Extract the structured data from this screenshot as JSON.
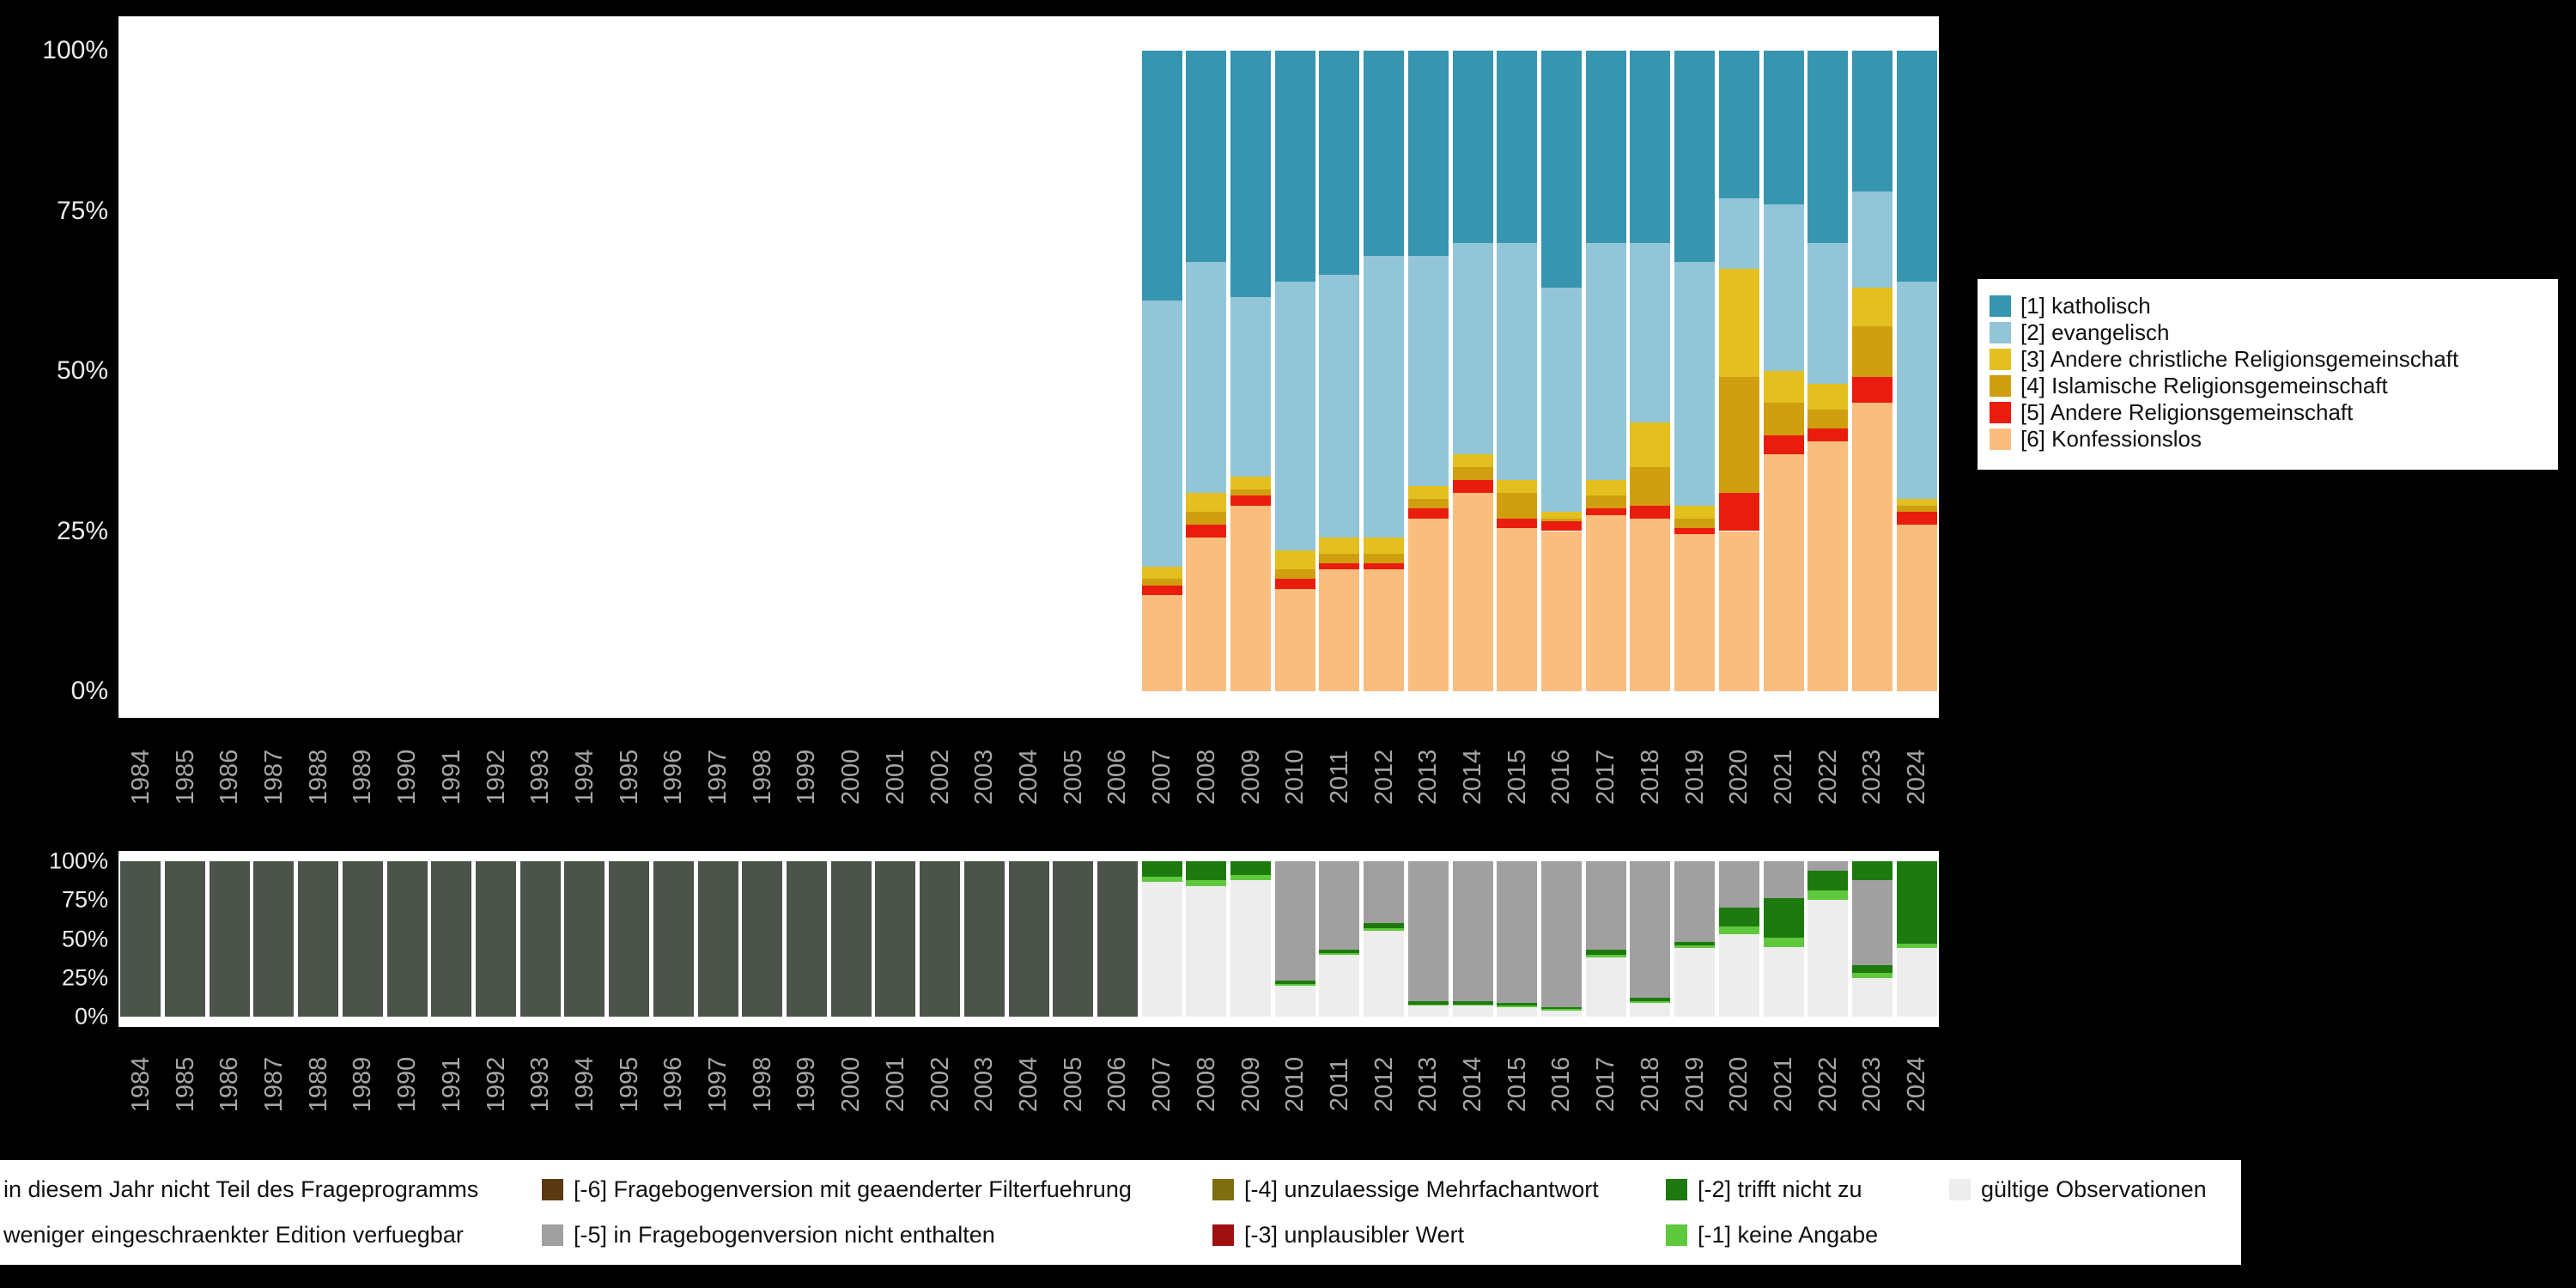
{
  "page": {
    "background": "#000000",
    "panel_background": "#ffffff"
  },
  "top_legend": {
    "items": [
      {
        "label": "[1] katholisch",
        "color": "#3795b0"
      },
      {
        "label": "[2] evangelisch",
        "color": "#92c5d8"
      },
      {
        "label": "[3] Andere christliche Religionsgemeinschaft",
        "color": "#e3c01f"
      },
      {
        "label": "[4] Islamische Religionsgemeinschaft",
        "color": "#cf9f10"
      },
      {
        "label": "[5] Andere Religionsgemeinschaft",
        "color": "#ea1c0d"
      },
      {
        "label": "[6] Konfessionslos",
        "color": "#f9bd7e"
      }
    ]
  },
  "bottom_legend": {
    "rows": [
      [
        {
          "label": "in diesem Jahr nicht Teil des Frageprogramms",
          "color": "#4b534b",
          "swatch": false
        },
        {
          "label": "[-6] Fragebogenversion mit geaenderter Filterfuehrung",
          "color": "#5a3a12",
          "swatch": true
        },
        {
          "label": "[-4] unzulaessige Mehrfachantwort",
          "color": "#7d6e10",
          "swatch": true
        },
        {
          "label": "[-2] trifft nicht zu",
          "color": "#1e7a0e",
          "swatch": true
        },
        {
          "label": "gültige Observationen",
          "color": "#ededed",
          "swatch": true
        }
      ],
      [
        {
          "label": "weniger eingeschraenkter Edition verfuegbar",
          "color": "#9e9e9e",
          "swatch": false
        },
        {
          "label": "[-5] in Fragebogenversion nicht enthalten",
          "color": "#a0a0a0",
          "swatch": true
        },
        {
          "label": "[-3] unplausibler Wert",
          "color": "#a01010",
          "swatch": true
        },
        {
          "label": "[-1] keine Angabe",
          "color": "#5ec93c",
          "swatch": true
        }
      ]
    ]
  },
  "chart_data": [
    {
      "type": "bar",
      "stacked": true,
      "stack_unit": "percent",
      "title": "",
      "xlabel": "",
      "ylabel": "",
      "ylim": [
        0,
        100
      ],
      "grid": false,
      "legend_position": "right",
      "x": [
        "1984",
        "1985",
        "1986",
        "1987",
        "1988",
        "1989",
        "1990",
        "1991",
        "1992",
        "1993",
        "1994",
        "1995",
        "1996",
        "1997",
        "1998",
        "1999",
        "2000",
        "2001",
        "2002",
        "2003",
        "2004",
        "2005",
        "2006",
        "2007",
        "2008",
        "2009",
        "2010",
        "2011",
        "2012",
        "2013",
        "2014",
        "2015",
        "2016",
        "2017",
        "2018",
        "2019",
        "2020",
        "2021",
        "2022",
        "2023",
        "2024"
      ],
      "yticks": [
        0,
        25,
        50,
        75,
        100
      ],
      "ytick_labels": [
        "0%",
        "25%",
        "50%",
        "75%",
        "100%"
      ],
      "series_bottom_up": [
        {
          "name": "[6] Konfessionslos",
          "color": "#f9bd7e",
          "values_by_year": {
            "2007": 15,
            "2008": 24,
            "2009": 29,
            "2010": 16,
            "2011": 19,
            "2012": 19,
            "2013": 27,
            "2014": 31,
            "2015": 25.5,
            "2016": 25,
            "2017": 27.5,
            "2018": 27,
            "2019": 24.5,
            "2020": 25,
            "2021": 37,
            "2022": 39,
            "2023": 45,
            "2024": 26
          }
        },
        {
          "name": "[5] Andere Religionsgemeinschaft",
          "color": "#ea1c0d",
          "values_by_year": {
            "2007": 1.5,
            "2008": 2,
            "2009": 1.5,
            "2010": 1.5,
            "2011": 1,
            "2012": 1,
            "2013": 1.5,
            "2014": 2,
            "2015": 1.5,
            "2016": 1.5,
            "2017": 1,
            "2018": 2,
            "2019": 1,
            "2020": 6,
            "2021": 3,
            "2022": 2,
            "2023": 4,
            "2024": 2
          }
        },
        {
          "name": "[4] Islamische Religionsgemeinschaft",
          "color": "#cf9f10",
          "values_by_year": {
            "2007": 1,
            "2008": 2,
            "2009": 1,
            "2010": 1.5,
            "2011": 1.5,
            "2012": 1.5,
            "2013": 1.5,
            "2014": 2,
            "2015": 4,
            "2016": 0.5,
            "2017": 2,
            "2018": 6,
            "2019": 1.5,
            "2020": 18,
            "2021": 5,
            "2022": 3,
            "2023": 8,
            "2024": 1
          }
        },
        {
          "name": "[3] Andere christliche Religionsgemeinschaft",
          "color": "#e3c01f",
          "values_by_year": {
            "2007": 2,
            "2008": 3,
            "2009": 2,
            "2010": 3,
            "2011": 2.5,
            "2012": 2.5,
            "2013": 2,
            "2014": 2,
            "2015": 2,
            "2016": 1,
            "2017": 2.5,
            "2018": 7,
            "2019": 2,
            "2020": 17,
            "2021": 5,
            "2022": 4,
            "2023": 6,
            "2024": 1
          }
        },
        {
          "name": "[2] evangelisch",
          "color": "#92c5d8",
          "values_by_year": {
            "2007": 41.5,
            "2008": 36,
            "2009": 28,
            "2010": 42,
            "2011": 41,
            "2012": 44,
            "2013": 36,
            "2014": 33,
            "2015": 37,
            "2016": 35,
            "2017": 37,
            "2018": 28,
            "2019": 38,
            "2020": 11,
            "2021": 26,
            "2022": 22,
            "2023": 15,
            "2024": 34
          }
        },
        {
          "name": "[1] katholisch",
          "color": "#3795b0",
          "values_by_year": {
            "2007": 39,
            "2008": 33,
            "2009": 38.5,
            "2010": 36,
            "2011": 35,
            "2012": 32,
            "2013": 32,
            "2014": 30,
            "2015": 30,
            "2016": 37,
            "2017": 30,
            "2018": 30,
            "2019": 33,
            "2020": 23,
            "2021": 24,
            "2022": 30,
            "2023": 22,
            "2024": 36
          }
        }
      ]
    },
    {
      "type": "bar",
      "stacked": true,
      "stack_unit": "percent",
      "title": "",
      "xlabel": "",
      "ylabel": "",
      "ylim": [
        0,
        100
      ],
      "grid": false,
      "legend_position": "bottom",
      "x": [
        "1984",
        "1985",
        "1986",
        "1987",
        "1988",
        "1989",
        "1990",
        "1991",
        "1992",
        "1993",
        "1994",
        "1995",
        "1996",
        "1997",
        "1998",
        "1999",
        "2000",
        "2001",
        "2002",
        "2003",
        "2004",
        "2005",
        "2006",
        "2007",
        "2008",
        "2009",
        "2010",
        "2011",
        "2012",
        "2013",
        "2014",
        "2015",
        "2016",
        "2017",
        "2018",
        "2019",
        "2020",
        "2021",
        "2022",
        "2023",
        "2024"
      ],
      "yticks": [
        0,
        25,
        50,
        75,
        100
      ],
      "ytick_labels": [
        "0%",
        "25%",
        "50%",
        "75%",
        "100%"
      ],
      "palette": {
        "notpart": "#4b534b",
        "valid": "#ededed",
        "na": "#5ec93c",
        "tnz": "#1e7a0e",
        "gray": "#a0a0a0"
      },
      "palette_labels": {
        "notpart": "in diesem Jahr nicht Teil des Frageprogramms",
        "valid": "gültige Observationen",
        "na": "[-1] keine Angabe",
        "tnz": "[-2] trifft nicht zu",
        "gray": "[-5] in Fragebogenversion nicht enthalten"
      },
      "bars_by_year": {
        "1984": [
          [
            "notpart",
            100
          ]
        ],
        "1985": [
          [
            "notpart",
            100
          ]
        ],
        "1986": [
          [
            "notpart",
            100
          ]
        ],
        "1987": [
          [
            "notpart",
            100
          ]
        ],
        "1988": [
          [
            "notpart",
            100
          ]
        ],
        "1989": [
          [
            "notpart",
            100
          ]
        ],
        "1990": [
          [
            "notpart",
            100
          ]
        ],
        "1991": [
          [
            "notpart",
            100
          ]
        ],
        "1992": [
          [
            "notpart",
            100
          ]
        ],
        "1993": [
          [
            "notpart",
            100
          ]
        ],
        "1994": [
          [
            "notpart",
            100
          ]
        ],
        "1995": [
          [
            "notpart",
            100
          ]
        ],
        "1996": [
          [
            "notpart",
            100
          ]
        ],
        "1997": [
          [
            "notpart",
            100
          ]
        ],
        "1998": [
          [
            "notpart",
            100
          ]
        ],
        "1999": [
          [
            "notpart",
            100
          ]
        ],
        "2000": [
          [
            "notpart",
            100
          ]
        ],
        "2001": [
          [
            "notpart",
            100
          ]
        ],
        "2002": [
          [
            "notpart",
            100
          ]
        ],
        "2003": [
          [
            "notpart",
            100
          ]
        ],
        "2004": [
          [
            "notpart",
            100
          ]
        ],
        "2005": [
          [
            "notpart",
            100
          ]
        ],
        "2006": [
          [
            "notpart",
            100
          ]
        ],
        "2007": [
          [
            "valid",
            87
          ],
          [
            "na",
            3
          ],
          [
            "tnz",
            10
          ]
        ],
        "2008": [
          [
            "valid",
            84
          ],
          [
            "na",
            4
          ],
          [
            "tnz",
            12
          ]
        ],
        "2009": [
          [
            "valid",
            88
          ],
          [
            "na",
            3
          ],
          [
            "tnz",
            9
          ]
        ],
        "2010": [
          [
            "valid",
            20
          ],
          [
            "na",
            1
          ],
          [
            "tnz",
            2
          ],
          [
            "gray",
            77
          ]
        ],
        "2011": [
          [
            "valid",
            40
          ],
          [
            "na",
            1
          ],
          [
            "tnz",
            2
          ],
          [
            "gray",
            57
          ]
        ],
        "2012": [
          [
            "valid",
            55
          ],
          [
            "na",
            2
          ],
          [
            "tnz",
            3
          ],
          [
            "gray",
            40
          ]
        ],
        "2013": [
          [
            "valid",
            7
          ],
          [
            "na",
            1
          ],
          [
            "tnz",
            2
          ],
          [
            "gray",
            90
          ]
        ],
        "2014": [
          [
            "valid",
            7
          ],
          [
            "na",
            1
          ],
          [
            "tnz",
            2
          ],
          [
            "gray",
            90
          ]
        ],
        "2015": [
          [
            "valid",
            6
          ],
          [
            "na",
            1
          ],
          [
            "tnz",
            2
          ],
          [
            "gray",
            91
          ]
        ],
        "2016": [
          [
            "valid",
            4
          ],
          [
            "na",
            1
          ],
          [
            "tnz",
            1
          ],
          [
            "gray",
            94
          ]
        ],
        "2017": [
          [
            "valid",
            38
          ],
          [
            "na",
            2
          ],
          [
            "tnz",
            3
          ],
          [
            "gray",
            57
          ]
        ],
        "2018": [
          [
            "valid",
            9
          ],
          [
            "na",
            1
          ],
          [
            "tnz",
            2
          ],
          [
            "gray",
            88
          ]
        ],
        "2019": [
          [
            "valid",
            44
          ],
          [
            "na",
            2
          ],
          [
            "tnz",
            2
          ],
          [
            "gray",
            52
          ]
        ],
        "2020": [
          [
            "valid",
            53
          ],
          [
            "na",
            5
          ],
          [
            "tnz",
            12
          ],
          [
            "gray",
            30
          ]
        ],
        "2021": [
          [
            "valid",
            45
          ],
          [
            "na",
            6
          ],
          [
            "tnz",
            25
          ],
          [
            "gray",
            24
          ]
        ],
        "2022": [
          [
            "valid",
            75
          ],
          [
            "na",
            6
          ],
          [
            "tnz",
            13
          ],
          [
            "gray",
            6
          ]
        ],
        "2023": [
          [
            "valid",
            25
          ],
          [
            "na",
            3
          ],
          [
            "tnz",
            5
          ],
          [
            "gray",
            55
          ],
          [
            "tnz",
            12
          ]
        ],
        "2024": [
          [
            "valid",
            44
          ],
          [
            "na",
            3
          ],
          [
            "tnz",
            53
          ]
        ]
      }
    }
  ]
}
